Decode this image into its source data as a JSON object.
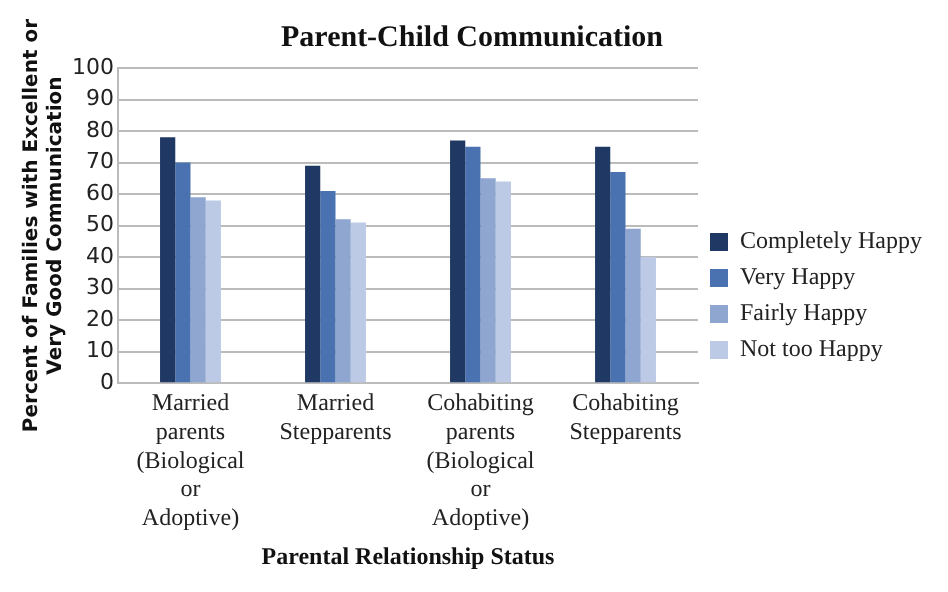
{
  "chart_data": {
    "type": "bar",
    "title": "Parent-Child Communication",
    "xlabel": "Parental Relationship Status",
    "ylabel": "Percent of Families with Excellent or Very Good Communication",
    "categories": [
      "Married parents (Biological or Adoptive)",
      "Married Stepparents",
      "Cohabiting parents (Biological or Adoptive)",
      "Cohabiting Stepparents"
    ],
    "series": [
      {
        "name": "Completely Happy",
        "color": "#1f3864",
        "values": [
          78,
          69,
          77,
          75
        ]
      },
      {
        "name": "Very Happy",
        "color": "#4a72b0",
        "values": [
          70,
          61,
          75,
          67
        ]
      },
      {
        "name": "Fairly Happy",
        "color": "#8ea6d0",
        "values": [
          59,
          52,
          65,
          49
        ]
      },
      {
        "name": "Not too Happy",
        "color": "#bccae6",
        "values": [
          58,
          51,
          64,
          40
        ]
      }
    ],
    "ylim": [
      0,
      100
    ],
    "yticks": [
      0,
      10,
      20,
      30,
      40,
      50,
      60,
      70,
      80,
      90,
      100
    ],
    "grid": "y",
    "legend": "right"
  }
}
